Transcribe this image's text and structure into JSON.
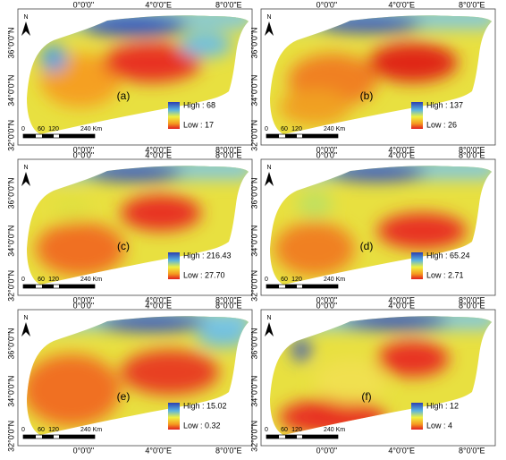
{
  "north": "N",
  "x_labels": [
    "0°0'0\"",
    "4°0'0\"E",
    "8°0'0\"E"
  ],
  "y_labels": [
    "36°0'0\"N",
    "34°0'0\"N",
    "32°0'0\"N"
  ],
  "scale_labels": [
    "0",
    "60",
    "120",
    "240 Km"
  ],
  "panels": [
    {
      "label": "(a)",
      "high": "High : 68",
      "low": "Low : 17"
    },
    {
      "label": "(b)",
      "high": "High : 137",
      "low": "Low : 26"
    },
    {
      "label": "(c)",
      "high": "High : 216.43",
      "low": "Low : 27.70"
    },
    {
      "label": "(d)",
      "high": "High : 65.24",
      "low": "Low : 2.71"
    },
    {
      "label": "(e)",
      "high": "High : 15.02",
      "low": "Low : 0.32"
    },
    {
      "label": "(f)",
      "high": "High : 12",
      "low": "Low : 4"
    }
  ]
}
